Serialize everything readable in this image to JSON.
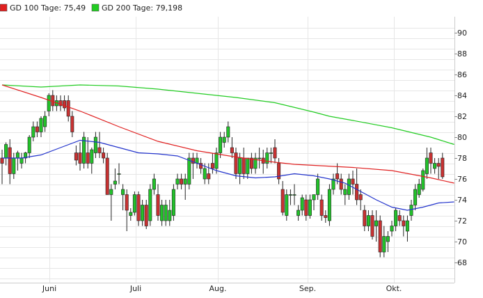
{
  "chart_data": {
    "type": "candlestick",
    "legend": [
      {
        "label": "GD 100 Tage: 75,49",
        "color": "#e02020"
      },
      {
        "label": "GD 200 Tage: 79,198",
        "color": "#22cc22"
      }
    ],
    "x_tick_labels": [
      "Juni",
      "Juli",
      "Aug.",
      "Sep.",
      "Okt."
    ],
    "y_tick_labels": [
      "68",
      "70",
      "72",
      "74",
      "76",
      "78",
      "80",
      "82",
      "84",
      "86",
      "88",
      "90"
    ],
    "ylim": [
      66.5,
      91.5
    ],
    "grid": true,
    "up_color": "#22c22a",
    "down_color": "#c83232",
    "candles": [
      [
        78.0,
        78.8,
        75.5,
        77.5
      ],
      [
        78.0,
        79.5,
        77.3,
        79.3
      ],
      [
        79.0,
        79.8,
        75.5,
        76.5
      ],
      [
        76.5,
        78.5,
        76.0,
        78.0
      ],
      [
        78.0,
        78.7,
        76.8,
        78.5
      ],
      [
        77.5,
        78.5,
        77.0,
        78.0
      ],
      [
        78.0,
        78.6,
        77.5,
        78.5
      ],
      [
        78.5,
        80.2,
        78.0,
        80.0
      ],
      [
        80.0,
        81.5,
        79.6,
        81.0
      ],
      [
        81.0,
        81.5,
        80.0,
        80.5
      ],
      [
        80.5,
        82.0,
        80.0,
        81.8
      ],
      [
        81.0,
        82.5,
        80.5,
        82.0
      ],
      [
        82.5,
        84.2,
        82.0,
        84.0
      ],
      [
        84.0,
        84.5,
        82.5,
        83.0
      ],
      [
        83.0,
        84.0,
        82.5,
        83.5
      ],
      [
        83.5,
        84.0,
        82.5,
        83.0
      ],
      [
        83.5,
        84.0,
        82.5,
        82.8
      ],
      [
        83.5,
        84.0,
        81.5,
        82.0
      ],
      [
        82.0,
        82.5,
        80.0,
        80.5
      ],
      [
        78.5,
        79.2,
        77.3,
        77.8
      ],
      [
        78.5,
        79.5,
        76.8,
        77.5
      ],
      [
        77.5,
        80.5,
        77.0,
        80.0
      ],
      [
        78.5,
        80.0,
        77.0,
        77.5
      ],
      [
        77.5,
        79.0,
        76.5,
        78.8
      ],
      [
        78.5,
        80.5,
        78.0,
        80.0
      ],
      [
        79.0,
        80.5,
        78.0,
        78.5
      ],
      [
        78.5,
        79.0,
        77.5,
        78.0
      ],
      [
        78.0,
        78.5,
        74.5,
        74.5
      ],
      [
        74.5,
        75.5,
        72.0,
        75.0
      ],
      [
        75.5,
        77.0,
        75.0,
        75.8
      ],
      [
        76.5,
        77.5,
        75.5,
        76.5
      ],
      [
        74.5,
        75.5,
        73.0,
        75.0
      ],
      [
        74.5,
        75.0,
        71.0,
        73.0
      ],
      [
        72.5,
        73.2,
        72.0,
        72.8
      ],
      [
        72.8,
        74.8,
        72.5,
        74.5
      ],
      [
        74.5,
        74.8,
        71.5,
        72.0
      ],
      [
        72.0,
        74.0,
        71.5,
        73.5
      ],
      [
        73.5,
        74.0,
        71.2,
        71.5
      ],
      [
        72.0,
        75.5,
        71.5,
        75.0
      ],
      [
        75.0,
        76.5,
        74.5,
        76.0
      ],
      [
        74.5,
        75.5,
        72.0,
        72.5
      ],
      [
        72.0,
        74.0,
        71.5,
        73.5
      ],
      [
        72.0,
        74.0,
        71.5,
        73.5
      ],
      [
        72.0,
        74.0,
        71.5,
        73.0
      ],
      [
        72.5,
        75.5,
        72.0,
        75.0
      ],
      [
        75.5,
        76.5,
        75.0,
        76.0
      ],
      [
        76.0,
        76.5,
        75.0,
        75.5
      ],
      [
        75.5,
        76.5,
        74.0,
        76.0
      ],
      [
        75.5,
        78.5,
        75.0,
        78.0
      ],
      [
        78.0,
        78.5,
        76.0,
        77.5
      ],
      [
        77.5,
        78.5,
        77.0,
        78.0
      ],
      [
        77.5,
        78.0,
        76.5,
        77.0
      ],
      [
        76.0,
        77.5,
        75.5,
        77.0
      ],
      [
        76.5,
        77.5,
        75.5,
        76.0
      ],
      [
        77.5,
        78.5,
        76.5,
        77.0
      ],
      [
        77.0,
        79.0,
        76.5,
        78.5
      ],
      [
        78.5,
        80.5,
        78.0,
        80.0
      ],
      [
        79.5,
        80.5,
        79.0,
        80.0
      ],
      [
        80.0,
        81.5,
        79.5,
        81.0
      ],
      [
        79.0,
        80.0,
        78.0,
        78.5
      ],
      [
        78.5,
        79.0,
        76.0,
        76.5
      ],
      [
        76.5,
        78.5,
        75.5,
        78.0
      ],
      [
        78.0,
        79.0,
        76.0,
        76.5
      ],
      [
        76.5,
        78.0,
        76.0,
        78.0
      ],
      [
        78.0,
        78.5,
        76.5,
        77.0
      ],
      [
        77.0,
        78.5,
        76.5,
        78.0
      ],
      [
        78.0,
        79.0,
        77.0,
        78.0
      ],
      [
        78.0,
        78.8,
        76.5,
        77.5
      ],
      [
        77.5,
        79.0,
        77.0,
        78.5
      ],
      [
        78.5,
        79.0,
        77.5,
        78.5
      ],
      [
        79.0,
        79.8,
        77.5,
        78.0
      ],
      [
        77.5,
        78.0,
        75.5,
        76.0
      ],
      [
        75.0,
        75.8,
        72.5,
        72.8
      ],
      [
        72.5,
        75.0,
        72.0,
        74.5
      ],
      [
        74.5,
        75.0,
        73.5,
        74.5
      ],
      [
        74.5,
        75.5,
        73.5,
        74.5
      ],
      [
        72.5,
        73.5,
        72.0,
        73.0
      ],
      [
        73.0,
        74.5,
        72.5,
        74.2
      ],
      [
        74.0,
        74.5,
        72.0,
        72.5
      ],
      [
        72.5,
        74.5,
        72.2,
        74.0
      ],
      [
        74.0,
        74.5,
        73.0,
        74.5
      ],
      [
        74.5,
        76.5,
        74.0,
        76.0
      ],
      [
        74.0,
        74.5,
        72.0,
        72.5
      ],
      [
        72.5,
        73.0,
        71.8,
        72.3
      ],
      [
        72.0,
        75.5,
        71.5,
        75.0
      ],
      [
        75.0,
        76.5,
        74.5,
        76.0
      ],
      [
        76.5,
        77.5,
        75.5,
        76.0
      ],
      [
        76.0,
        76.5,
        74.5,
        75.0
      ],
      [
        74.5,
        75.5,
        73.5,
        75.0
      ],
      [
        74.5,
        76.5,
        74.0,
        76.0
      ],
      [
        76.0,
        76.8,
        74.5,
        75.5
      ],
      [
        75.5,
        77.0,
        73.5,
        74.0
      ],
      [
        74.5,
        75.0,
        73.0,
        74.0
      ],
      [
        73.0,
        73.5,
        71.0,
        71.5
      ],
      [
        71.5,
        73.0,
        71.0,
        72.5
      ],
      [
        72.5,
        73.0,
        70.2,
        70.5
      ],
      [
        71.5,
        73.0,
        70.0,
        72.0
      ],
      [
        72.0,
        72.5,
        68.5,
        69.0
      ],
      [
        69.0,
        71.5,
        68.5,
        70.5
      ],
      [
        70.0,
        71.0,
        69.0,
        70.5
      ],
      [
        71.0,
        72.0,
        70.5,
        71.5
      ],
      [
        71.5,
        73.2,
        71.0,
        73.0
      ],
      [
        72.5,
        73.0,
        71.5,
        72.0
      ],
      [
        72.0,
        72.5,
        70.5,
        71.5
      ],
      [
        71.0,
        72.5,
        70.0,
        72.0
      ],
      [
        72.5,
        74.0,
        72.0,
        73.5
      ],
      [
        73.5,
        75.5,
        73.0,
        75.0
      ],
      [
        74.5,
        76.0,
        74.2,
        75.5
      ],
      [
        75.0,
        77.0,
        74.8,
        76.8
      ],
      [
        76.5,
        79.0,
        76.0,
        78.0
      ],
      [
        78.5,
        79.0,
        76.5,
        77.5
      ],
      [
        77.0,
        78.0,
        76.5,
        77.5
      ],
      [
        77.5,
        78.0,
        76.0,
        77.2
      ],
      [
        78.0,
        78.5,
        76.0,
        76.2
      ]
    ],
    "ma_100": [
      [
        0,
        85.0
      ],
      [
        10,
        83.8
      ],
      [
        20,
        82.5
      ],
      [
        30,
        81.0
      ],
      [
        40,
        79.6
      ],
      [
        50,
        78.7
      ],
      [
        60,
        78.1
      ],
      [
        70,
        77.6
      ],
      [
        75,
        77.4
      ],
      [
        80,
        77.3
      ],
      [
        90,
        77.1
      ],
      [
        100,
        76.8
      ],
      [
        110,
        76.1
      ],
      [
        116,
        75.6
      ]
    ],
    "ma_200": [
      [
        0,
        85.0
      ],
      [
        10,
        84.8
      ],
      [
        20,
        85.0
      ],
      [
        30,
        84.9
      ],
      [
        40,
        84.6
      ],
      [
        50,
        84.2
      ],
      [
        60,
        83.8
      ],
      [
        70,
        83.3
      ],
      [
        80,
        82.4
      ],
      [
        84,
        82.0
      ],
      [
        90,
        81.6
      ],
      [
        100,
        80.9
      ],
      [
        110,
        80.0
      ],
      [
        116,
        79.3
      ]
    ],
    "ma_blue": [
      [
        0,
        78.0
      ],
      [
        5,
        78.0
      ],
      [
        10,
        78.3
      ],
      [
        15,
        79.0
      ],
      [
        20,
        79.7
      ],
      [
        25,
        79.5
      ],
      [
        30,
        79.0
      ],
      [
        35,
        78.5
      ],
      [
        40,
        78.4
      ],
      [
        45,
        78.2
      ],
      [
        50,
        77.5
      ],
      [
        55,
        76.8
      ],
      [
        60,
        76.3
      ],
      [
        65,
        76.1
      ],
      [
        70,
        76.2
      ],
      [
        75,
        76.5
      ],
      [
        80,
        76.3
      ],
      [
        84,
        76.0
      ],
      [
        88,
        75.6
      ],
      [
        92,
        74.8
      ],
      [
        96,
        74.0
      ],
      [
        100,
        73.3
      ],
      [
        104,
        73.0
      ],
      [
        108,
        73.3
      ],
      [
        112,
        73.7
      ],
      [
        116,
        73.8
      ]
    ]
  }
}
